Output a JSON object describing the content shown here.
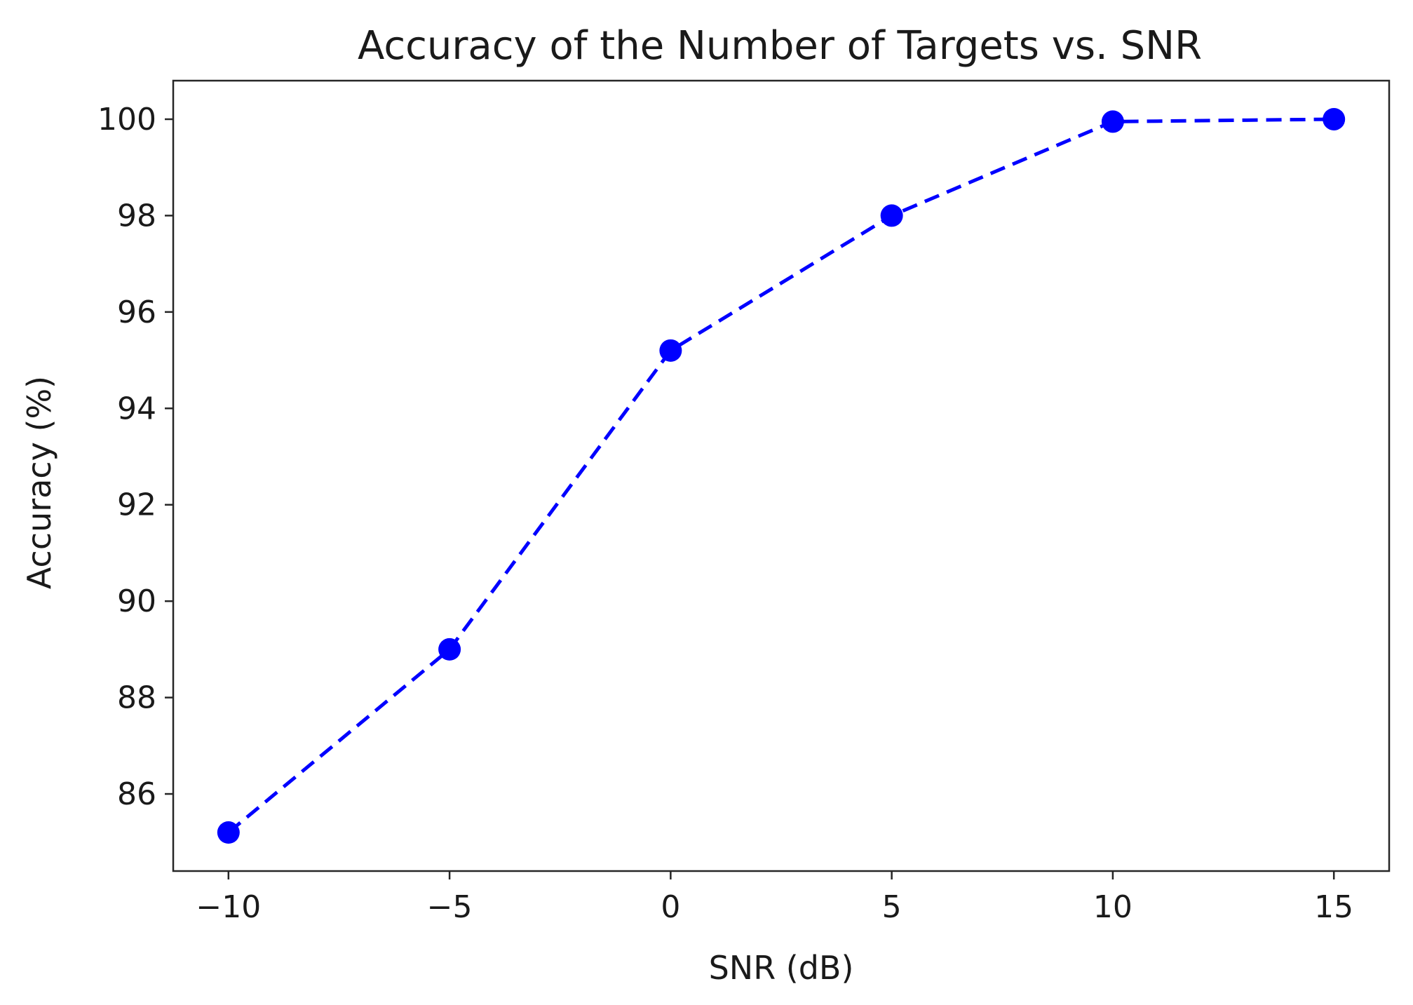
{
  "chart_data": {
    "type": "line",
    "title": "Accuracy of the Number of Targets vs. SNR",
    "xlabel": "SNR (dB)",
    "ylabel": "Accuracy (%)",
    "x": [
      -10,
      -5,
      0,
      5,
      10,
      15
    ],
    "series": [
      {
        "values": [
          85.2,
          89.0,
          95.2,
          98.0,
          99.95,
          100.0
        ],
        "color": "#0000ff",
        "line_style": "dashed",
        "marker": "circle"
      }
    ],
    "xlim": [
      -11.25,
      16.25
    ],
    "ylim": [
      84.4,
      100.8
    ],
    "xticks": [
      -10,
      -5,
      0,
      5,
      10,
      15
    ],
    "xtick_labels": [
      "−10",
      "−5",
      "0",
      "5",
      "10",
      "15"
    ],
    "yticks": [
      86,
      88,
      90,
      92,
      94,
      96,
      98,
      100
    ],
    "ytick_labels": [
      "86",
      "88",
      "90",
      "92",
      "94",
      "96",
      "98",
      "100"
    ],
    "grid": false,
    "legend": "none"
  }
}
